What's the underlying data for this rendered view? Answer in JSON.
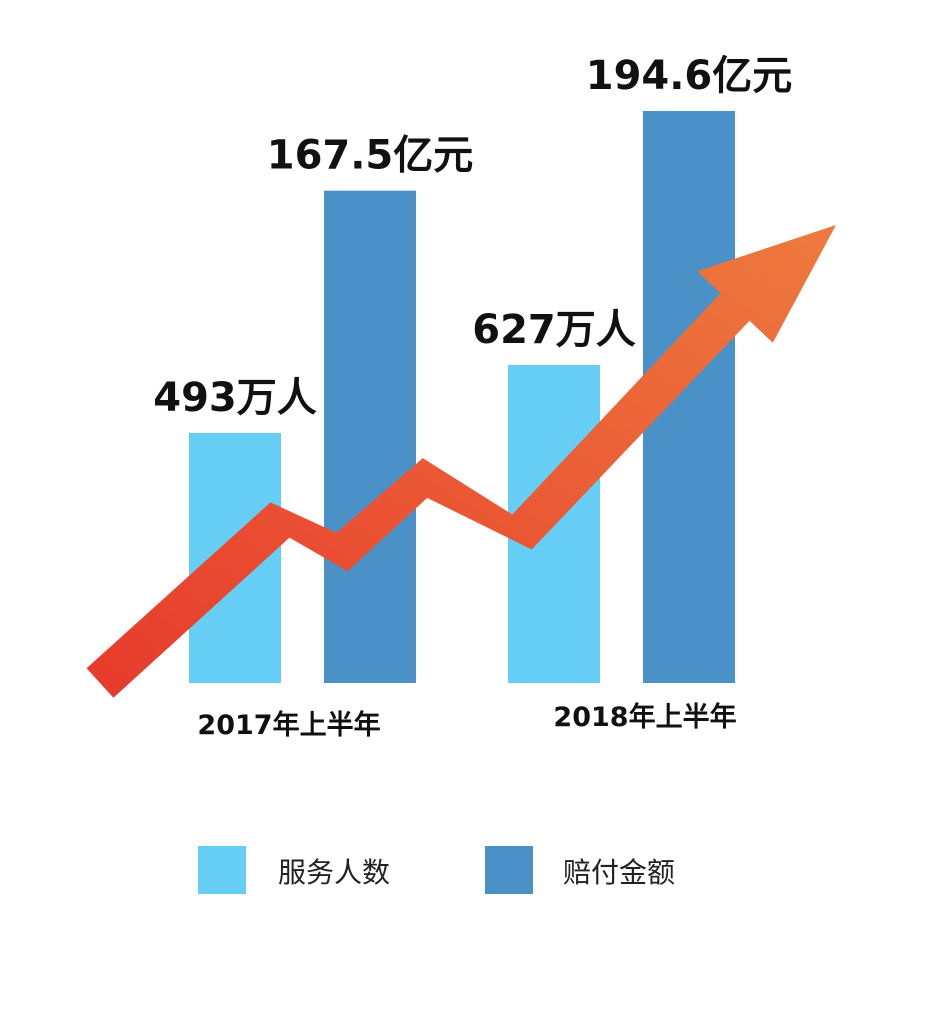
{
  "chart_data": {
    "type": "bar",
    "categories": [
      "2017年上半年",
      "2018年上半年"
    ],
    "series": [
      {
        "name": "服务人数",
        "values": [
          493,
          627
        ],
        "value_labels": [
          "493万人",
          "627万人"
        ],
        "color": "#66cdf4"
      },
      {
        "name": "赔付金额",
        "values": [
          167.5,
          194.6
        ],
        "value_labels": [
          "167.5亿元",
          "194.6亿元"
        ],
        "color": "#4a91c8"
      }
    ],
    "legend_position": "bottom",
    "grid": false,
    "arrow_color": "#e8412e"
  }
}
